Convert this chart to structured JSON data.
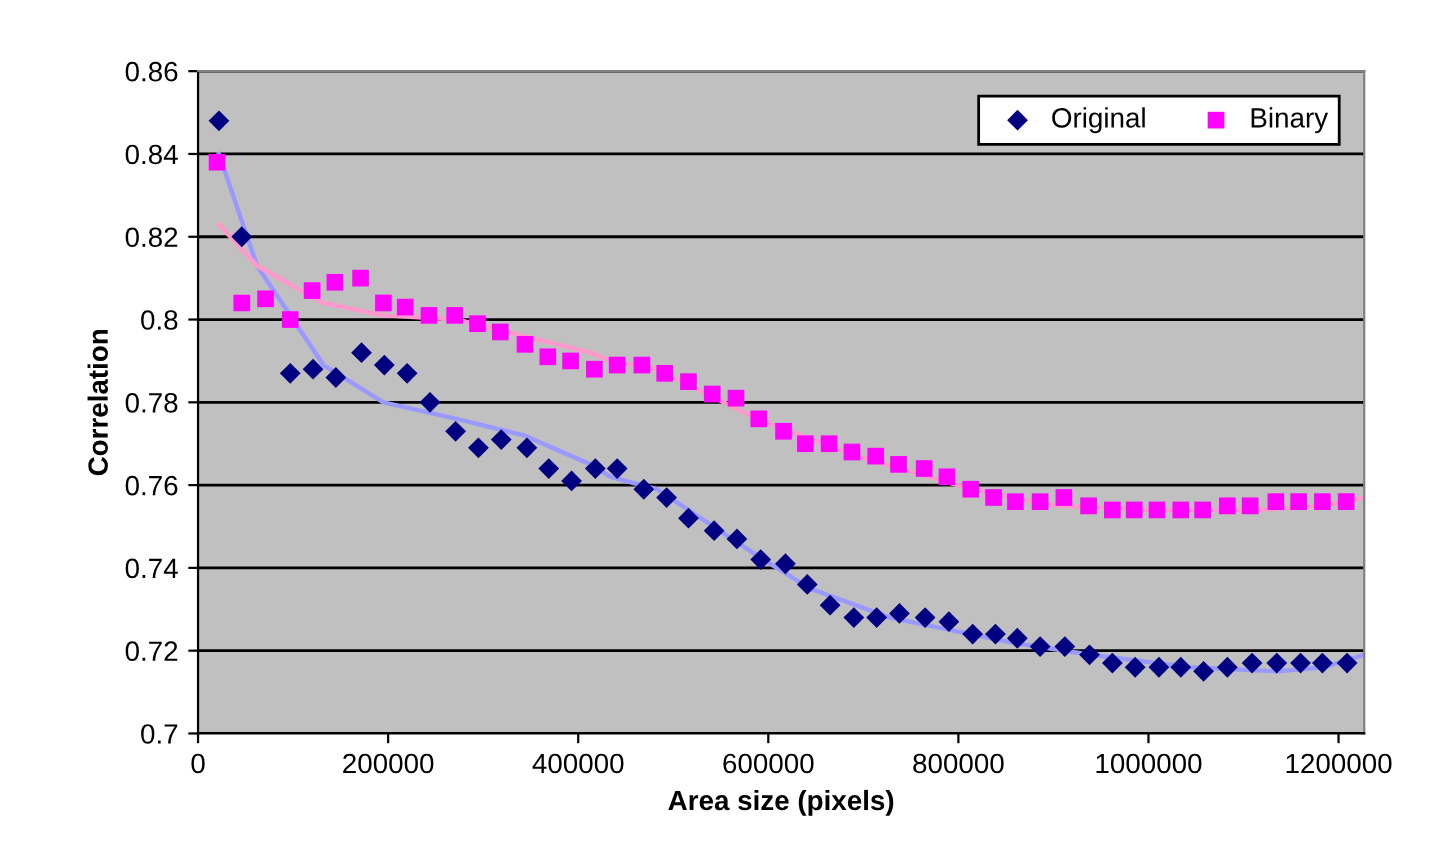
{
  "chart_data": {
    "type": "scatter",
    "xlabel": "Area size (pixels)",
    "ylabel": "Correlation",
    "xlim": [
      0,
      1227000
    ],
    "ylim": [
      0.7,
      0.86
    ],
    "xticks": [
      0,
      200000,
      400000,
      600000,
      800000,
      1000000,
      1200000
    ],
    "yticks": [
      0.7,
      0.72,
      0.74,
      0.76,
      0.78,
      0.8,
      0.82,
      0.84,
      0.86
    ],
    "grid": "y",
    "legend": "top right",
    "series": [
      {
        "name": "Original",
        "marker": "diamond",
        "color": "#000080",
        "x": [
          22000,
          46000,
          97000,
          121000,
          145000,
          172000,
          196000,
          220000,
          244000,
          271000,
          295000,
          319000,
          346000,
          369000,
          393000,
          418000,
          441000,
          469000,
          493000,
          516000,
          543000,
          567000,
          592000,
          618000,
          641000,
          665000,
          690000,
          714000,
          738000,
          765000,
          790000,
          815000,
          839000,
          862000,
          886000,
          912000,
          938000,
          962000,
          986000,
          1011000,
          1034000,
          1058000,
          1083000,
          1109000,
          1135000,
          1160000,
          1183000,
          1209000
        ],
        "values": [
          0.848,
          0.82,
          0.787,
          0.788,
          0.786,
          0.792,
          0.789,
          0.787,
          0.78,
          0.773,
          0.769,
          0.771,
          0.769,
          0.764,
          0.761,
          0.764,
          0.764,
          0.759,
          0.757,
          0.752,
          0.749,
          0.747,
          0.742,
          0.741,
          0.736,
          0.731,
          0.728,
          0.728,
          0.729,
          0.728,
          0.727,
          0.724,
          0.724,
          0.723,
          0.721,
          0.721,
          0.719,
          0.717,
          0.716,
          0.716,
          0.716,
          0.715,
          0.716,
          0.717,
          0.717,
          0.717,
          0.717,
          0.717
        ]
      },
      {
        "name": "Binary",
        "marker": "square",
        "color": "#ff00ff",
        "x": [
          20000,
          46000,
          71000,
          97000,
          120000,
          144000,
          171000,
          195000,
          218000,
          243000,
          270000,
          294000,
          318000,
          344000,
          368000,
          392000,
          417000,
          441000,
          467000,
          491000,
          516000,
          541000,
          566000,
          590000,
          616000,
          639000,
          664000,
          688000,
          713000,
          737000,
          764000,
          788000,
          813000,
          837000,
          860000,
          886000,
          911000,
          937000,
          962000,
          985000,
          1009000,
          1034000,
          1057000,
          1083000,
          1107000,
          1134000,
          1158000,
          1183000,
          1208000
        ],
        "values": [
          0.838,
          0.804,
          0.805,
          0.8,
          0.807,
          0.809,
          0.81,
          0.804,
          0.803,
          0.801,
          0.801,
          0.799,
          0.797,
          0.794,
          0.791,
          0.79,
          0.788,
          0.789,
          0.789,
          0.787,
          0.785,
          0.782,
          0.781,
          0.776,
          0.773,
          0.77,
          0.77,
          0.768,
          0.767,
          0.765,
          0.764,
          0.762,
          0.759,
          0.757,
          0.756,
          0.756,
          0.757,
          0.755,
          0.754,
          0.754,
          0.754,
          0.754,
          0.754,
          0.755,
          0.755,
          0.756,
          0.756,
          0.756,
          0.756
        ]
      },
      {
        "type": "line",
        "marker": "none",
        "line_style": "solid",
        "color": "#9999ff",
        "x": [
          22000,
          62000,
          132000,
          195000,
          272000,
          343000,
          413000,
          434000,
          483000,
          588000,
          644000,
          728000,
          855000,
          939000,
          1044000,
          1135000,
          1185000,
          1227000
        ],
        "values": [
          0.84,
          0.813,
          0.789,
          0.78,
          0.776,
          0.772,
          0.765,
          0.762,
          0.759,
          0.743,
          0.735,
          0.728,
          0.722,
          0.719,
          0.716,
          0.715,
          0.716,
          0.719
        ]
      },
      {
        "type": "line",
        "marker": "none",
        "line_style": "solid",
        "color": "#ff99cc",
        "x": [
          22000,
          62000,
          132000,
          195000,
          272000,
          343000,
          413000,
          434000,
          483000,
          588000,
          693000,
          799000,
          855000,
          904000,
          1009000,
          1114000,
          1185000,
          1227000
        ],
        "values": [
          0.823,
          0.813,
          0.804,
          0.801,
          0.8,
          0.796,
          0.792,
          0.79,
          0.788,
          0.776,
          0.767,
          0.76,
          0.757,
          0.755,
          0.754,
          0.754,
          0.755,
          0.757
        ]
      }
    ]
  }
}
